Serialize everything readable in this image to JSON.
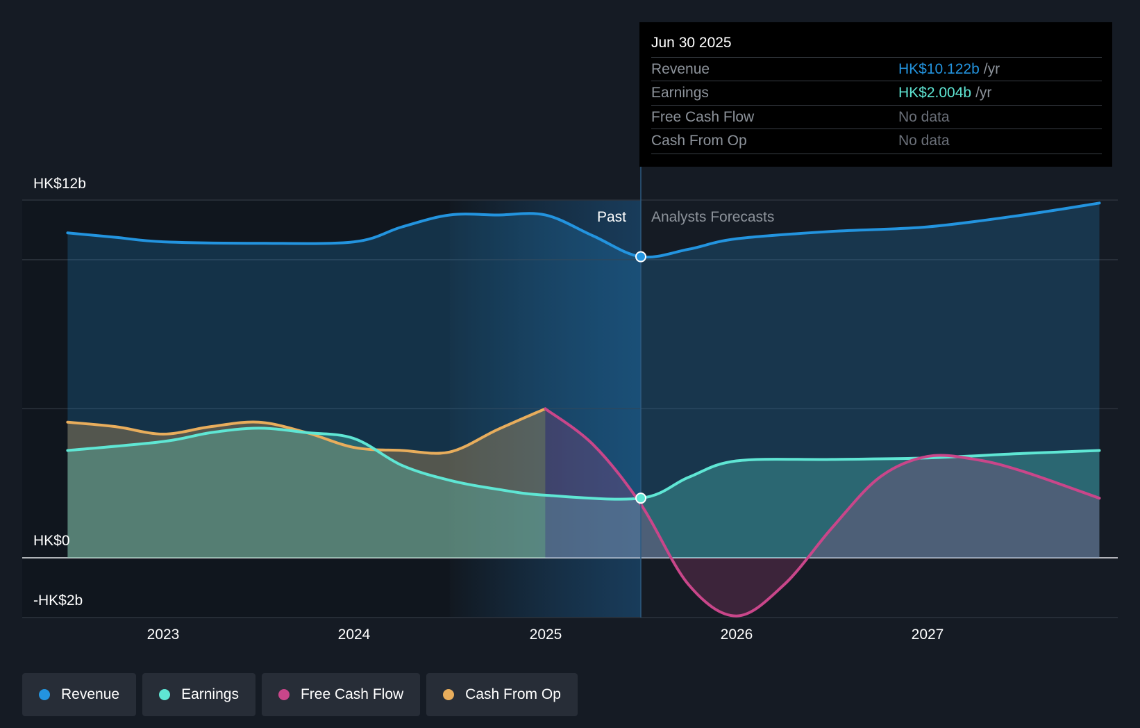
{
  "chart_data": {
    "type": "line",
    "x_range": [
      2022.5,
      2027.9
    ],
    "y_range": [
      -2,
      12
    ],
    "y_unit": "HK$ billions",
    "divider_date": "Jun 30 2025",
    "y_labels": [
      "HK$12b",
      "HK$0",
      "-HK$2b"
    ],
    "x_ticks": [
      "2023",
      "2024",
      "2025",
      "2026",
      "2027"
    ],
    "past_label": "Past",
    "forecast_label": "Analysts Forecasts",
    "series": [
      {
        "name": "Revenue",
        "color": "#2394df",
        "x": [
          2022.5,
          2022.75,
          2023.0,
          2023.5,
          2024.0,
          2024.25,
          2024.5,
          2024.75,
          2025.0,
          2025.25,
          2025.5,
          2025.75,
          2026.0,
          2026.5,
          2027.0,
          2027.5,
          2027.9
        ],
        "y": [
          10.9,
          10.75,
          10.6,
          10.55,
          10.6,
          11.1,
          11.5,
          11.5,
          11.5,
          10.8,
          10.1,
          10.35,
          10.7,
          10.95,
          11.1,
          11.5,
          11.9
        ]
      },
      {
        "name": "Earnings",
        "color": "#5fe6d4",
        "x": [
          2022.5,
          2023.0,
          2023.25,
          2023.5,
          2023.75,
          2024.0,
          2024.25,
          2024.5,
          2024.75,
          2025.0,
          2025.5,
          2025.75,
          2026.0,
          2026.5,
          2027.0,
          2027.5,
          2027.9
        ],
        "y": [
          3.6,
          3.9,
          4.2,
          4.35,
          4.2,
          4.0,
          3.1,
          2.6,
          2.3,
          2.1,
          2.0,
          2.7,
          3.25,
          3.3,
          3.35,
          3.5,
          3.6
        ]
      },
      {
        "name": "Free Cash Flow",
        "color": "#c9468a",
        "x": [
          2025.0,
          2025.25,
          2025.5,
          2025.75,
          2026.0,
          2026.25,
          2026.5,
          2026.75,
          2027.0,
          2027.25,
          2027.5,
          2027.9
        ],
        "y": [
          5.0,
          3.8,
          1.8,
          -0.9,
          -1.95,
          -0.9,
          1.0,
          2.7,
          3.4,
          3.3,
          2.9,
          2.0
        ]
      },
      {
        "name": "Cash From Op",
        "color": "#e8ad5c",
        "x": [
          2022.5,
          2022.75,
          2023.0,
          2023.25,
          2023.5,
          2023.75,
          2024.0,
          2024.25,
          2024.5,
          2024.75,
          2025.0
        ],
        "y": [
          4.55,
          4.4,
          4.15,
          4.4,
          4.55,
          4.2,
          3.7,
          3.6,
          3.55,
          4.3,
          5.0
        ]
      }
    ]
  },
  "tooltip": {
    "date": "Jun 30 2025",
    "rows": [
      {
        "label": "Revenue",
        "value": "HK$10.122b",
        "unit": "/yr",
        "color": "#2394df"
      },
      {
        "label": "Earnings",
        "value": "HK$2.004b",
        "unit": "/yr",
        "color": "#5fe6d4"
      },
      {
        "label": "Free Cash Flow",
        "value": "No data",
        "unit": "",
        "color": "#6b7079"
      },
      {
        "label": "Cash From Op",
        "value": "No data",
        "unit": "",
        "color": "#6b7079"
      }
    ]
  },
  "legend": [
    {
      "label": "Revenue",
      "color": "#2394df"
    },
    {
      "label": "Earnings",
      "color": "#5fe6d4"
    },
    {
      "label": "Free Cash Flow",
      "color": "#c9468a"
    },
    {
      "label": "Cash From Op",
      "color": "#e8ad5c"
    }
  ]
}
